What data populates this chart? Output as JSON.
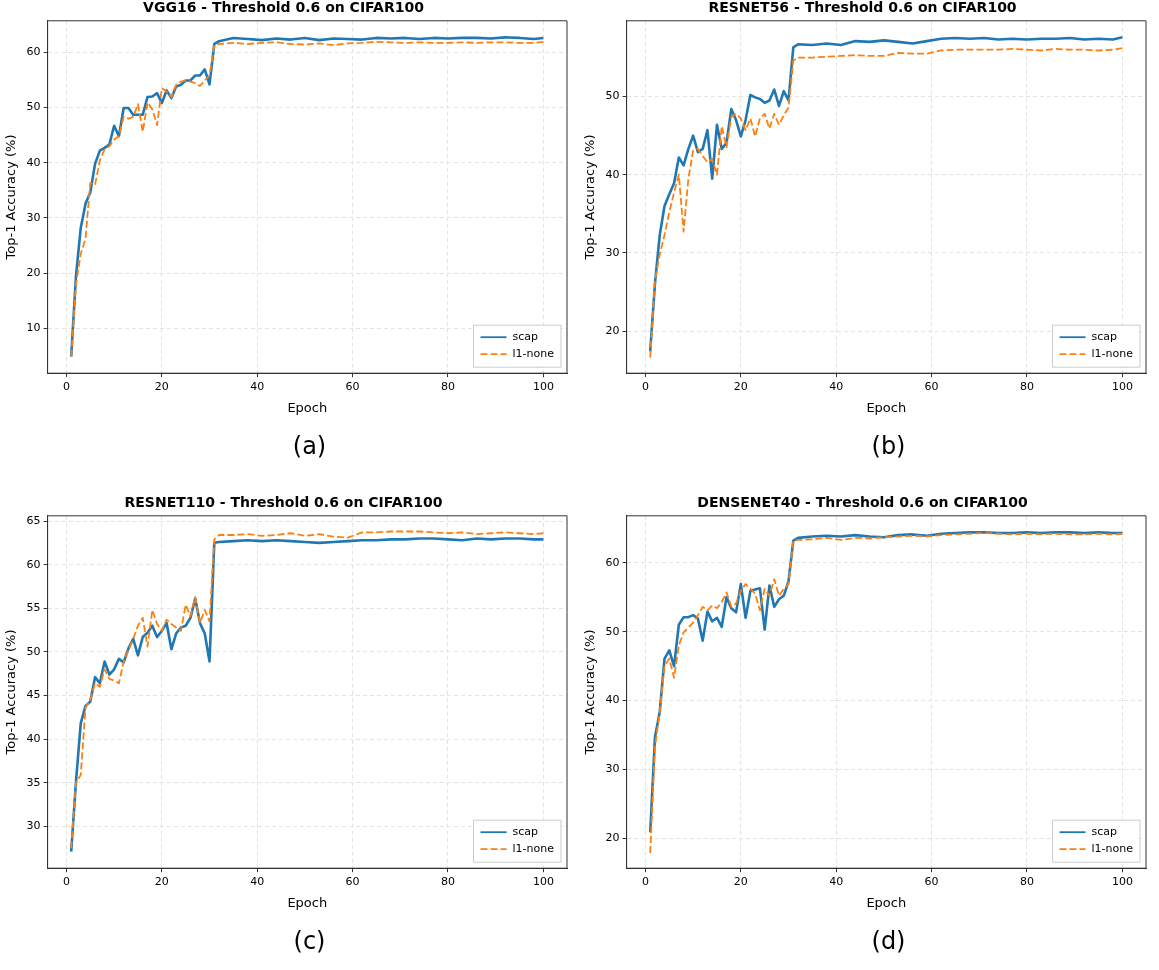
{
  "chart_data": [
    {
      "type": "line",
      "title": "VGG16 - Threshold 0.6 on CIFAR100",
      "xlabel": "Epoch",
      "ylabel": "Top-1 Accuracy (%)",
      "annotations": [
        "(a)"
      ],
      "legend": "bottom right",
      "grid": true,
      "xlim": [
        -3.95,
        104.95
      ],
      "xticks": [
        0,
        20,
        40,
        60,
        80,
        100
      ],
      "ylim": [
        1.9,
        65.7
      ],
      "yticks": [
        10,
        20,
        30,
        40,
        50,
        60
      ],
      "x": [
        1,
        2,
        3,
        4,
        5,
        6,
        7,
        8,
        9,
        10,
        11,
        12,
        13,
        14,
        15,
        16,
        17,
        18,
        19,
        20,
        21,
        22,
        23,
        24,
        25,
        26,
        27,
        28,
        29,
        30,
        31,
        32,
        35,
        38,
        41,
        44,
        47,
        50,
        53,
        56,
        59,
        62,
        65,
        68,
        71,
        74,
        77,
        80,
        83,
        86,
        89,
        92,
        95,
        98,
        100
      ],
      "series": [
        {
          "name": "scap",
          "color": "#1f77b4",
          "line_style": "solid",
          "values": [
            4.9,
            19.5,
            28.2,
            32.6,
            34.6,
            39.8,
            42.2,
            42.7,
            43.3,
            46.7,
            44.8,
            49.9,
            49.9,
            48.7,
            48.7,
            48.7,
            51.9,
            52.0,
            52.6,
            50.8,
            53.1,
            51.7,
            53.8,
            54.1,
            54.9,
            54.9,
            55.8,
            55.8,
            56.9,
            54.2,
            61.5,
            62.0,
            62.6,
            62.4,
            62.2,
            62.5,
            62.3,
            62.6,
            62.2,
            62.5,
            62.4,
            62.3,
            62.6,
            62.5,
            62.6,
            62.4,
            62.6,
            62.5,
            62.6,
            62.6,
            62.5,
            62.7,
            62.6,
            62.4,
            62.6
          ]
        },
        {
          "name": "l1-none",
          "color": "#ff7f0e",
          "line_style": "dashed",
          "values": [
            4.9,
            18.0,
            23.5,
            26.3,
            36.3,
            36.0,
            40.4,
            42.4,
            43.0,
            44.2,
            44.8,
            48.3,
            48.0,
            48.3,
            50.6,
            45.6,
            50.9,
            49.7,
            46.8,
            53.5,
            52.9,
            51.9,
            54.1,
            54.7,
            54.9,
            54.7,
            54.4,
            53.9,
            54.9,
            55.8,
            61.3,
            61.5,
            61.7,
            61.5,
            61.7,
            61.8,
            61.5,
            61.4,
            61.6,
            61.3,
            61.6,
            61.7,
            61.9,
            61.8,
            61.7,
            61.8,
            61.7,
            61.7,
            61.8,
            61.7,
            61.8,
            61.8,
            61.7,
            61.7,
            61.9
          ]
        }
      ]
    },
    {
      "type": "line",
      "title": "RESNET56 - Threshold 0.6 on CIFAR100",
      "xlabel": "Epoch",
      "ylabel": "Top-1 Accuracy (%)",
      "annotations": [
        "(b)"
      ],
      "legend": "bottom right",
      "grid": true,
      "xlim": [
        -3.95,
        104.95
      ],
      "xticks": [
        0,
        20,
        40,
        60,
        80,
        100
      ],
      "ylim": [
        14.6,
        59.7
      ],
      "yticks": [
        20,
        30,
        40,
        50
      ],
      "x": [
        1,
        2,
        3,
        4,
        5,
        6,
        7,
        8,
        9,
        10,
        11,
        12,
        13,
        14,
        15,
        16,
        17,
        18,
        19,
        20,
        21,
        22,
        23,
        24,
        25,
        26,
        27,
        28,
        29,
        30,
        31,
        32,
        35,
        38,
        41,
        44,
        47,
        50,
        53,
        56,
        59,
        62,
        65,
        68,
        71,
        74,
        77,
        80,
        83,
        86,
        89,
        92,
        95,
        98,
        100
      ],
      "series": [
        {
          "name": "scap",
          "color": "#1f77b4",
          "line_style": "solid",
          "values": [
            17.4,
            26.1,
            32.3,
            36.0,
            37.5,
            38.9,
            42.2,
            41.2,
            43.3,
            45.0,
            42.9,
            43.3,
            45.7,
            39.5,
            46.4,
            43.3,
            44.1,
            48.4,
            47.0,
            44.9,
            47.0,
            50.2,
            49.9,
            49.7,
            49.2,
            49.5,
            50.9,
            48.8,
            50.7,
            49.5,
            56.3,
            56.7,
            56.6,
            56.8,
            56.6,
            57.1,
            57.0,
            57.2,
            57.0,
            56.8,
            57.1,
            57.4,
            57.5,
            57.4,
            57.5,
            57.3,
            57.4,
            57.3,
            57.4,
            57.4,
            57.5,
            57.3,
            57.4,
            57.3,
            57.6
          ]
        },
        {
          "name": "l1-none",
          "color": "#ff7f0e",
          "line_style": "dashed",
          "values": [
            16.6,
            26.5,
            29.8,
            32.3,
            35.2,
            37.7,
            40.0,
            32.7,
            39.5,
            43.1,
            43.3,
            42.4,
            41.6,
            42.0,
            40.0,
            46.2,
            43.5,
            47.4,
            47.8,
            47.2,
            45.7,
            47.2,
            44.9,
            47.2,
            47.8,
            45.9,
            47.8,
            46.4,
            47.6,
            48.6,
            54.6,
            55.0,
            55.0,
            55.1,
            55.2,
            55.3,
            55.2,
            55.2,
            55.6,
            55.5,
            55.5,
            55.9,
            56.0,
            56.0,
            56.0,
            56.0,
            56.1,
            56.0,
            55.9,
            56.1,
            56.0,
            56.0,
            55.9,
            56.0,
            56.2
          ]
        }
      ]
    },
    {
      "type": "line",
      "title": "RESNET110 - Threshold 0.6 on CIFAR100",
      "xlabel": "Epoch",
      "ylabel": "Top-1 Accuracy (%)",
      "annotations": [
        "(c)"
      ],
      "legend": "bottom right",
      "grid": true,
      "xlim": [
        -3.95,
        104.95
      ],
      "xticks": [
        0,
        20,
        40,
        60,
        80,
        100
      ],
      "ylim": [
        25.2,
        65.6
      ],
      "yticks": [
        30,
        35,
        40,
        45,
        50,
        55,
        60,
        65
      ],
      "x": [
        1,
        2,
        3,
        4,
        5,
        6,
        7,
        8,
        9,
        10,
        11,
        12,
        13,
        14,
        15,
        16,
        17,
        18,
        19,
        20,
        21,
        22,
        23,
        24,
        25,
        26,
        27,
        28,
        29,
        30,
        31,
        32,
        35,
        38,
        41,
        44,
        47,
        50,
        53,
        56,
        59,
        62,
        65,
        68,
        71,
        74,
        77,
        80,
        83,
        86,
        89,
        92,
        95,
        98,
        100
      ],
      "series": [
        {
          "name": "scap",
          "color": "#1f77b4",
          "line_style": "solid",
          "values": [
            27.1,
            35.1,
            41.8,
            43.8,
            44.3,
            47.1,
            46.4,
            48.9,
            47.4,
            48.0,
            49.2,
            48.8,
            50.4,
            51.5,
            49.6,
            51.7,
            52.2,
            53.0,
            51.7,
            52.4,
            53.3,
            50.3,
            52.1,
            52.8,
            53.0,
            53.9,
            56.1,
            53.3,
            52.1,
            48.9,
            62.5,
            62.6,
            62.7,
            62.8,
            62.7,
            62.8,
            62.7,
            62.6,
            62.5,
            62.6,
            62.7,
            62.8,
            62.8,
            62.9,
            62.9,
            63.0,
            63.0,
            62.9,
            62.8,
            63.0,
            62.9,
            63.0,
            63.0,
            62.9,
            62.9
          ]
        },
        {
          "name": "l1-none",
          "color": "#ff7f0e",
          "line_style": "dashed",
          "values": [
            27.5,
            35.0,
            35.9,
            43.6,
            44.5,
            46.4,
            46.0,
            48.0,
            46.9,
            46.7,
            46.4,
            48.9,
            50.2,
            51.5,
            53.0,
            53.9,
            50.6,
            54.8,
            53.2,
            52.4,
            53.7,
            53.2,
            52.8,
            52.4,
            55.4,
            54.1,
            56.3,
            53.3,
            54.8,
            53.5,
            62.9,
            63.4,
            63.4,
            63.5,
            63.3,
            63.4,
            63.6,
            63.3,
            63.5,
            63.2,
            63.1,
            63.7,
            63.7,
            63.8,
            63.8,
            63.8,
            63.7,
            63.6,
            63.7,
            63.5,
            63.6,
            63.7,
            63.6,
            63.5,
            63.6
          ]
        }
      ]
    },
    {
      "type": "line",
      "title": "DENSENET40 - Threshold 0.6 on CIFAR100",
      "xlabel": "Epoch",
      "ylabel": "Top-1 Accuracy (%)",
      "annotations": [
        "(d)"
      ],
      "legend": "bottom right",
      "grid": true,
      "xlim": [
        -3.95,
        104.95
      ],
      "xticks": [
        0,
        20,
        40,
        60,
        80,
        100
      ],
      "ylim": [
        15.7,
        66.8
      ],
      "yticks": [
        20,
        30,
        40,
        50,
        60
      ],
      "x": [
        1,
        2,
        3,
        4,
        5,
        6,
        7,
        8,
        9,
        10,
        11,
        12,
        13,
        14,
        15,
        16,
        17,
        18,
        19,
        20,
        21,
        22,
        23,
        24,
        25,
        26,
        27,
        28,
        29,
        30,
        31,
        32,
        35,
        38,
        41,
        44,
        47,
        50,
        53,
        56,
        59,
        62,
        65,
        68,
        71,
        74,
        77,
        80,
        83,
        86,
        89,
        92,
        95,
        98,
        100
      ],
      "series": [
        {
          "name": "scap",
          "color": "#1f77b4",
          "line_style": "solid",
          "values": [
            20.9,
            34.7,
            38.4,
            46.1,
            47.3,
            45.0,
            51.0,
            52.1,
            52.1,
            52.4,
            51.9,
            48.7,
            52.9,
            51.5,
            52.0,
            50.7,
            55.0,
            53.4,
            52.8,
            56.9,
            52.0,
            55.9,
            56.1,
            56.3,
            50.3,
            56.7,
            53.6,
            54.7,
            55.2,
            57.3,
            63.2,
            63.6,
            63.8,
            63.9,
            63.8,
            64.0,
            63.8,
            63.7,
            64.0,
            64.1,
            63.9,
            64.2,
            64.3,
            64.4,
            64.4,
            64.3,
            64.3,
            64.4,
            64.3,
            64.4,
            64.4,
            64.3,
            64.4,
            64.3,
            64.3
          ]
        },
        {
          "name": "l1-none",
          "color": "#ff7f0e",
          "line_style": "dashed",
          "values": [
            17.9,
            33.3,
            38.4,
            45.0,
            46.1,
            43.3,
            48.0,
            49.9,
            50.6,
            51.3,
            52.4,
            53.6,
            53.1,
            53.8,
            53.4,
            54.3,
            55.7,
            53.6,
            54.1,
            55.9,
            56.9,
            56.2,
            55.5,
            53.1,
            56.2,
            55.2,
            57.6,
            55.2,
            56.2,
            56.9,
            63.2,
            63.3,
            63.4,
            63.6,
            63.3,
            63.6,
            63.5,
            63.7,
            63.8,
            63.9,
            63.8,
            64.0,
            64.1,
            64.2,
            64.3,
            64.2,
            64.1,
            64.2,
            64.1,
            64.2,
            64.1,
            64.1,
            64.2,
            64.1,
            64.2
          ]
        }
      ]
    }
  ]
}
